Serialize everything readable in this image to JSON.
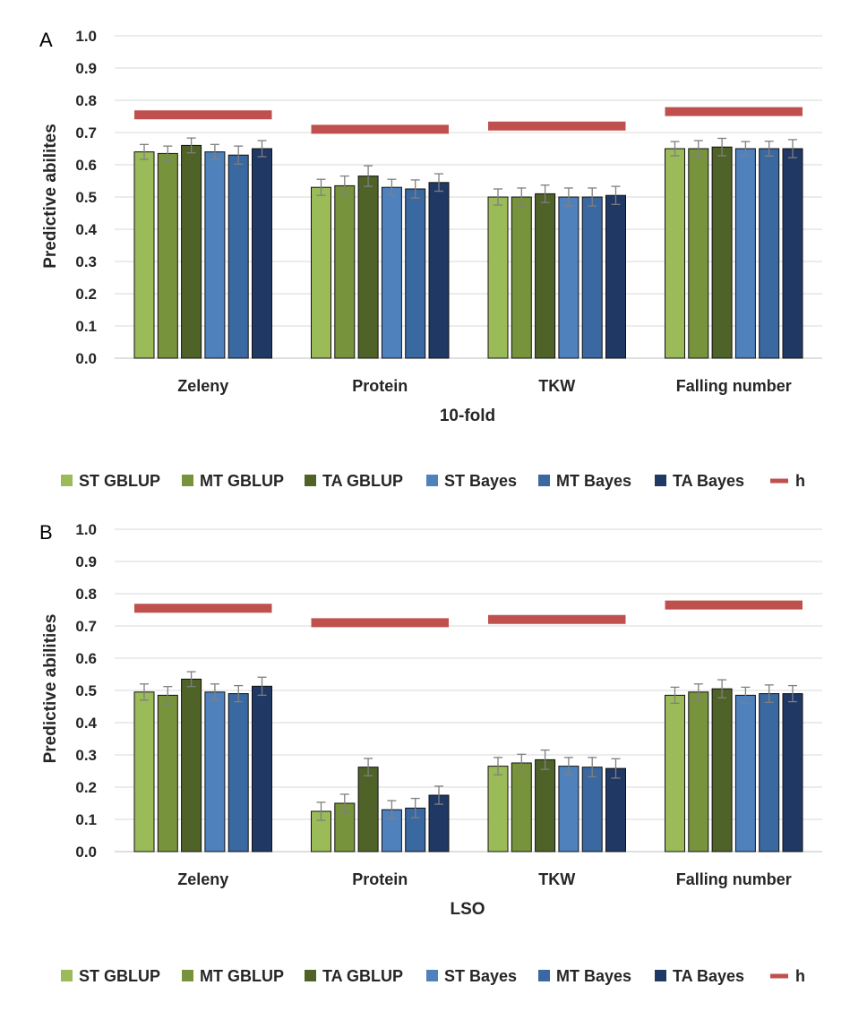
{
  "colors": {
    "series": [
      "#9bbb59",
      "#77933c",
      "#4f6228",
      "#4f81bd",
      "#3a68a0",
      "#1f3864"
    ],
    "heritability": "#c0504d",
    "grid": "#d9d9d9",
    "error_bar": "#7f7f7f"
  },
  "chart_data": [
    {
      "type": "bar",
      "panel_label": "A",
      "xlabel": "10-fold",
      "ylabel": "Predictive abilites",
      "ylim": [
        0,
        1.0
      ],
      "yticks": [
        "0.0",
        "0.1",
        "0.2",
        "0.3",
        "0.4",
        "0.5",
        "0.6",
        "0.7",
        "0.8",
        "0.9",
        "1.0"
      ],
      "grid": true,
      "legend_position": "bottom",
      "categories": [
        "Zeleny",
        "Protein",
        "TKW",
        "Falling number"
      ],
      "series": [
        {
          "name": "ST GBLUP",
          "values": [
            0.64,
            0.53,
            0.5,
            0.65
          ],
          "errors": [
            0.023,
            0.025,
            0.025,
            0.022
          ]
        },
        {
          "name": "MT GBLUP",
          "values": [
            0.635,
            0.535,
            0.5,
            0.65
          ],
          "errors": [
            0.023,
            0.03,
            0.028,
            0.025
          ]
        },
        {
          "name": "TA GBLUP",
          "values": [
            0.66,
            0.565,
            0.51,
            0.655
          ],
          "errors": [
            0.023,
            0.032,
            0.027,
            0.027
          ]
        },
        {
          "name": "ST Bayes",
          "values": [
            0.64,
            0.53,
            0.5,
            0.65
          ],
          "errors": [
            0.023,
            0.025,
            0.028,
            0.022
          ]
        },
        {
          "name": "MT Bayes",
          "values": [
            0.63,
            0.525,
            0.5,
            0.65
          ],
          "errors": [
            0.028,
            0.028,
            0.028,
            0.023
          ]
        },
        {
          "name": "TA Bayes",
          "values": [
            0.65,
            0.545,
            0.505,
            0.65
          ],
          "errors": [
            0.025,
            0.027,
            0.028,
            0.028
          ]
        }
      ],
      "h": {
        "name": "h",
        "values": [
          0.755,
          0.71,
          0.72,
          0.765
        ]
      }
    },
    {
      "type": "bar",
      "panel_label": "B",
      "xlabel": "LSO",
      "ylabel": "Predictive abilities",
      "ylim": [
        0,
        1.0
      ],
      "yticks": [
        "0.0",
        "0.1",
        "0.2",
        "0.3",
        "0.4",
        "0.5",
        "0.6",
        "0.7",
        "0.8",
        "0.9",
        "1.0"
      ],
      "grid": true,
      "legend_position": "bottom",
      "categories": [
        "Zeleny",
        "Protein",
        "TKW",
        "Falling number"
      ],
      "series": [
        {
          "name": "ST GBLUP",
          "values": [
            0.495,
            0.125,
            0.265,
            0.485
          ],
          "errors": [
            0.025,
            0.028,
            0.027,
            0.025
          ]
        },
        {
          "name": "MT GBLUP",
          "values": [
            0.485,
            0.15,
            0.275,
            0.495
          ],
          "errors": [
            0.027,
            0.028,
            0.027,
            0.025
          ]
        },
        {
          "name": "TA GBLUP",
          "values": [
            0.535,
            0.262,
            0.285,
            0.505
          ],
          "errors": [
            0.023,
            0.027,
            0.03,
            0.028
          ]
        },
        {
          "name": "ST Bayes",
          "values": [
            0.495,
            0.13,
            0.265,
            0.485
          ],
          "errors": [
            0.025,
            0.028,
            0.027,
            0.025
          ]
        },
        {
          "name": "MT Bayes",
          "values": [
            0.49,
            0.135,
            0.262,
            0.49
          ],
          "errors": [
            0.025,
            0.03,
            0.03,
            0.027
          ]
        },
        {
          "name": "TA Bayes",
          "values": [
            0.513,
            0.175,
            0.258,
            0.49
          ],
          "errors": [
            0.028,
            0.028,
            0.03,
            0.025
          ]
        }
      ],
      "h": {
        "name": "h",
        "values": [
          0.755,
          0.71,
          0.72,
          0.765
        ]
      }
    }
  ]
}
